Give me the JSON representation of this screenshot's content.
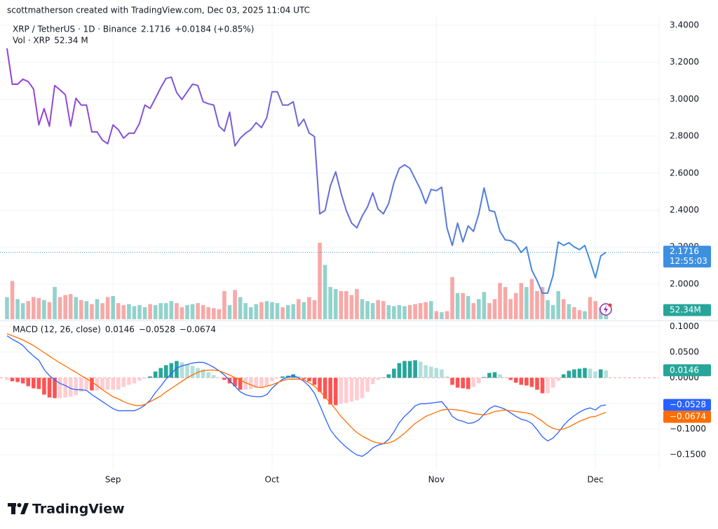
{
  "header": "scottmatherson created with TradingView.com, Dec 03, 2025 11:04 UTC",
  "footer_brand": "TradingView",
  "chart_data": [
    {
      "type": "line",
      "title": "XRP / TetherUS · 1D · Binance",
      "change_label": "+0.0184 (+0.85%)",
      "countdown": "12:55:03",
      "grid": true,
      "categories": [
        null,
        null,
        null,
        null,
        null,
        null,
        null,
        null,
        null,
        null,
        null,
        null,
        null,
        null,
        null,
        null,
        null,
        null,
        null,
        null,
        "Sep",
        null,
        null,
        null,
        null,
        null,
        null,
        null,
        null,
        null,
        null,
        null,
        null,
        null,
        null,
        null,
        null,
        null,
        null,
        null,
        null,
        null,
        null,
        null,
        null,
        null,
        null,
        null,
        null,
        null,
        "Oct",
        null,
        null,
        null,
        null,
        null,
        null,
        null,
        null,
        null,
        null,
        null,
        null,
        null,
        null,
        null,
        null,
        null,
        null,
        null,
        null,
        null,
        null,
        null,
        null,
        null,
        null,
        null,
        null,
        null,
        null,
        "Nov",
        null,
        null,
        null,
        null,
        null,
        null,
        null,
        null,
        null,
        null,
        null,
        null,
        null,
        null,
        null,
        null,
        null,
        null,
        null,
        null,
        null,
        null,
        null,
        null,
        null,
        null,
        null,
        null,
        null,
        "Dec",
        null,
        null
      ],
      "ylim": [
        1.81,
        3.43
      ],
      "yticks": [
        {
          "value": 2.0,
          "label": "2.0000"
        },
        {
          "value": 2.2,
          "label": "2.2000"
        },
        {
          "value": 2.4,
          "label": "2.4000"
        },
        {
          "value": 2.6,
          "label": "2.6000"
        },
        {
          "value": 2.8,
          "label": "2.8000"
        },
        {
          "value": 3.0,
          "label": "3.0000"
        },
        {
          "value": 3.2,
          "label": "3.2000"
        },
        {
          "value": 3.4,
          "label": "3.4000"
        }
      ],
      "series": [
        {
          "colors": [
            "#9a3fd4",
            "#3d8fe0"
          ],
          "values": [
            3.275,
            3.081,
            3.081,
            3.108,
            3.095,
            3.055,
            2.861,
            2.949,
            2.854,
            3.074,
            3.05,
            3.024,
            2.854,
            3.005,
            2.968,
            2.968,
            2.823,
            2.823,
            2.778,
            2.759,
            2.861,
            2.835,
            2.789,
            2.816,
            2.816,
            2.87,
            2.968,
            2.95,
            3.005,
            3.062,
            3.112,
            3.119,
            3.036,
            2.998,
            3.04,
            3.081,
            3.074,
            2.986,
            2.975,
            2.968,
            2.854,
            2.827,
            2.93,
            2.747,
            2.789,
            2.816,
            2.835,
            2.873,
            2.846,
            2.9,
            3.04,
            3.04,
            2.968,
            2.968,
            2.986,
            2.854,
            2.892,
            2.816,
            2.798,
            2.38,
            2.398,
            2.531,
            2.607,
            2.493,
            2.398,
            2.33,
            2.304,
            2.368,
            2.417,
            2.493,
            2.406,
            2.38,
            2.436,
            2.55,
            2.626,
            2.645,
            2.626,
            2.569,
            2.512,
            2.436,
            2.512,
            2.505,
            2.524,
            2.304,
            2.209,
            2.33,
            2.228,
            2.315,
            2.285,
            2.38,
            2.52,
            2.398,
            2.391,
            2.285,
            2.239,
            2.235,
            2.216,
            2.171,
            2.201,
            2.076,
            2.019,
            1.951,
            1.951,
            2.046,
            2.228,
            2.209,
            2.224,
            2.201,
            2.186,
            2.209,
            2.125,
            2.034,
            2.152,
            2.1716
          ]
        }
      ],
      "volume": {
        "type": "bar",
        "title": "Vol · XRP",
        "colors": {
          "up": "#26a69a",
          "down": "#ef5350"
        },
        "legend_label": "52.34 M",
        "badge_label": "52.34M",
        "values": [
          110,
          190,
          100,
          80,
          90,
          110,
          105,
          95,
          85,
          160,
          110,
          120,
          125,
          110,
          95,
          90,
          75,
          100,
          80,
          110,
          115,
          80,
          70,
          75,
          65,
          70,
          60,
          75,
          70,
          80,
          80,
          90,
          80,
          60,
          70,
          75,
          80,
          70,
          60,
          55,
          50,
          140,
          70,
          145,
          110,
          80,
          60,
          75,
          85,
          90,
          85,
          80,
          60,
          70,
          75,
          100,
          85,
          110,
          95,
          380,
          270,
          160,
          150,
          140,
          140,
          120,
          150,
          100,
          90,
          80,
          95,
          90,
          70,
          65,
          70,
          65,
          70,
          75,
          80,
          85,
          90,
          40,
          35,
          40,
          210,
          130,
          130,
          115,
          80,
          100,
          135,
          80,
          100,
          180,
          160,
          100,
          130,
          180,
          160,
          200,
          140,
          160,
          95,
          70,
          140,
          100,
          75,
          60,
          45,
          40,
          110,
          90,
          60,
          52.34
        ]
      }
    },
    {
      "type": "macd",
      "title": "MACD (12, 26, close)",
      "grid": true,
      "zero_line_color": "#f4a3a8",
      "ylim": [
        -0.177,
        0.11
      ],
      "yticks": [
        {
          "value": 0.1,
          "label": "0.1000"
        },
        {
          "value": 0.05,
          "label": "0.0500"
        },
        {
          "value": 0,
          "label": "0.0000"
        },
        {
          "value": -0.05,
          "label": "−0.0500"
        },
        {
          "value": -0.1,
          "label": "−0.1000"
        },
        {
          "value": -0.15,
          "label": "−0.1500"
        }
      ],
      "histogram": {
        "colors": {
          "up_strong": "#26a69a",
          "up_weak": "#b2dfdb",
          "down_strong": "#ff5252",
          "down_weak": "#ffcdd2"
        },
        "values": [
          -0.0041,
          -0.0068,
          -0.0082,
          -0.0109,
          -0.0164,
          -0.0205,
          -0.0219,
          -0.0328,
          -0.0383,
          -0.0396,
          -0.0396,
          -0.0383,
          -0.0369,
          -0.0342,
          -0.0273,
          -0.0232,
          -0.0246,
          -0.0246,
          -0.0232,
          -0.0232,
          -0.0232,
          -0.0232,
          -0.0178,
          -0.0137,
          -0.0109,
          -0.0055,
          -0.0014,
          0.0027,
          0.0123,
          0.0191,
          0.0246,
          0.0287,
          0.0328,
          0.0301,
          0.026,
          0.0232,
          0.0191,
          0.0164,
          0.0109,
          0.0055,
          0,
          -0.0041,
          -0.0109,
          -0.0164,
          -0.0232,
          -0.0232,
          -0.0219,
          -0.0191,
          -0.0178,
          -0.0164,
          -0.0068,
          -0.0014,
          0.0027,
          0.0041,
          0.0068,
          0.0027,
          -0.0027,
          -0.0068,
          -0.0137,
          -0.0273,
          -0.041,
          -0.0519,
          -0.0533,
          -0.0505,
          -0.0492,
          -0.0464,
          -0.0437,
          -0.0396,
          -0.0273,
          -0.0123,
          -0.0041,
          0,
          0.0068,
          0.0178,
          0.0287,
          0.0328,
          0.0328,
          0.0342,
          0.0314,
          0.0246,
          0.0219,
          0.0191,
          0.0164,
          0.0027,
          -0.0137,
          -0.0191,
          -0.0205,
          -0.0219,
          -0.0178,
          -0.0109,
          0.0014,
          0.0096,
          0.0109,
          0.0068,
          0.0014,
          -0.0041,
          -0.0096,
          -0.0137,
          -0.015,
          -0.0178,
          -0.0232,
          -0.0301,
          -0.0301,
          -0.0191,
          -0.0055,
          0.0068,
          0.0137,
          0.0164,
          0.0178,
          0.0191,
          0.0178,
          0.0123,
          0.0164,
          0.0146
        ]
      },
      "macd": {
        "color": "#2962ff",
        "last_value_label": "−0.0528",
        "values": [
          0.082,
          0.0751,
          0.0697,
          0.0628,
          0.0519,
          0.0423,
          0.0342,
          0.0164,
          0.0041,
          -0.0041,
          -0.0109,
          -0.015,
          -0.0205,
          -0.0232,
          -0.0232,
          -0.0246,
          -0.0328,
          -0.0396,
          -0.0464,
          -0.0533,
          -0.0601,
          -0.0642,
          -0.0642,
          -0.0642,
          -0.0642,
          -0.0601,
          -0.0533,
          -0.0437,
          -0.0287,
          -0.0164,
          -0.0027,
          0.0082,
          0.0191,
          0.0232,
          0.026,
          0.0287,
          0.0301,
          0.0301,
          0.026,
          0.0205,
          0.0137,
          0.0055,
          -0.0055,
          -0.0164,
          -0.0273,
          -0.0328,
          -0.0355,
          -0.0369,
          -0.0369,
          -0.0328,
          -0.0205,
          -0.0109,
          -0.0027,
          0.0014,
          0.0041,
          0,
          -0.0068,
          -0.0164,
          -0.0301,
          -0.0533,
          -0.0779,
          -0.1011,
          -0.1148,
          -0.1257,
          -0.1352,
          -0.1434,
          -0.1503,
          -0.153,
          -0.1462,
          -0.1366,
          -0.1311,
          -0.1284,
          -0.1202,
          -0.1052,
          -0.0874,
          -0.0751,
          -0.0656,
          -0.0546,
          -0.0505,
          -0.0505,
          -0.0492,
          -0.0478,
          -0.0464,
          -0.0587,
          -0.0751,
          -0.082,
          -0.0847,
          -0.0888,
          -0.0874,
          -0.082,
          -0.071,
          -0.0601,
          -0.0546,
          -0.0574,
          -0.0615,
          -0.0683,
          -0.0751,
          -0.0806,
          -0.0833,
          -0.0888,
          -0.1011,
          -0.1148,
          -0.123,
          -0.1175,
          -0.1066,
          -0.0929,
          -0.082,
          -0.0738,
          -0.0669,
          -0.0615,
          -0.0587,
          -0.0628,
          -0.0546,
          -0.0528
        ]
      },
      "signal": {
        "color": "#ff6d00",
        "last_value_label": "−0.0674",
        "values": [
          0.0861,
          0.082,
          0.0779,
          0.0738,
          0.0683,
          0.0628,
          0.056,
          0.0492,
          0.0423,
          0.0355,
          0.0287,
          0.0232,
          0.0164,
          0.0109,
          0.0041,
          -0.0014,
          -0.0082,
          -0.015,
          -0.0232,
          -0.0301,
          -0.0369,
          -0.041,
          -0.0464,
          -0.0505,
          -0.0533,
          -0.0546,
          -0.0519,
          -0.0464,
          -0.041,
          -0.0355,
          -0.0273,
          -0.0205,
          -0.0137,
          -0.0068,
          0,
          0.0055,
          0.0109,
          0.0137,
          0.015,
          0.015,
          0.0137,
          0.0096,
          0.0055,
          0,
          -0.0041,
          -0.0096,
          -0.0137,
          -0.0178,
          -0.0191,
          -0.0164,
          -0.0137,
          -0.0096,
          -0.0055,
          -0.0027,
          -0.0027,
          -0.0027,
          -0.0041,
          -0.0096,
          -0.0164,
          -0.026,
          -0.0369,
          -0.0492,
          -0.0615,
          -0.0751,
          -0.0861,
          -0.097,
          -0.1066,
          -0.1134,
          -0.1189,
          -0.1243,
          -0.127,
          -0.1284,
          -0.127,
          -0.123,
          -0.1161,
          -0.1079,
          -0.0984,
          -0.0888,
          -0.082,
          -0.0751,
          -0.071,
          -0.0669,
          -0.0628,
          -0.0615,
          -0.0615,
          -0.0628,
          -0.0642,
          -0.0669,
          -0.0697,
          -0.071,
          -0.0724,
          -0.0697,
          -0.0656,
          -0.0642,
          -0.0628,
          -0.0642,
          -0.0656,
          -0.0669,
          -0.0683,
          -0.071,
          -0.0779,
          -0.0847,
          -0.0929,
          -0.0984,
          -0.1011,
          -0.0997,
          -0.0956,
          -0.0902,
          -0.0847,
          -0.0806,
          -0.0765,
          -0.0751,
          -0.071,
          -0.0674
        ]
      }
    }
  ]
}
